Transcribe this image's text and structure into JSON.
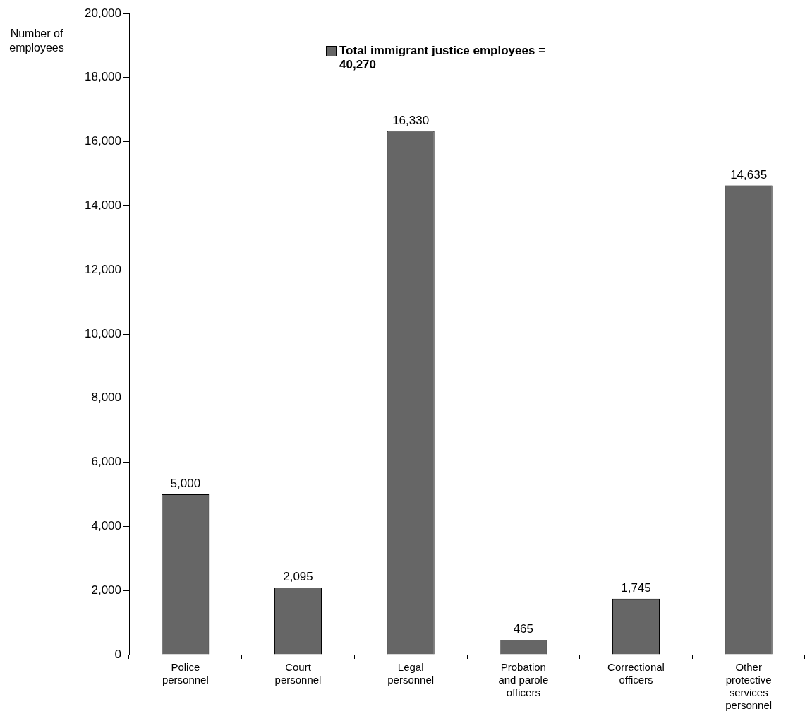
{
  "chart_data": {
    "type": "bar",
    "ylabel": "Number of employees",
    "categories": [
      "Police personnel",
      "Court personnel",
      "Legal personnel",
      "Probation and parole officers",
      "Correctional officers",
      "Other protective services personnel"
    ],
    "series": [
      {
        "name": "Total immigrant justice employees = 40,270",
        "color": "#666666",
        "values": [
          5000,
          2095,
          16330,
          465,
          1745,
          14635
        ],
        "value_labels": [
          "5,000",
          "2,095",
          "16,330",
          "465",
          "1,745",
          "14,635"
        ]
      }
    ],
    "ylim": [
      0,
      20000
    ],
    "yticks": [
      0,
      {
        "value": 2000,
        "label": "2,000"
      },
      {
        "value": 4000,
        "label": "4,000"
      },
      {
        "value": 6000,
        "label": "6,000"
      },
      {
        "value": 8000,
        "label": "8,000"
      },
      {
        "value": 10000,
        "label": "10,000"
      },
      {
        "value": 12000,
        "label": "12,000"
      },
      {
        "value": 14000,
        "label": "14,000"
      },
      {
        "value": 16000,
        "label": "16,000"
      },
      {
        "value": 18000,
        "label": "18,000"
      },
      {
        "value": 20000,
        "label": "20,000"
      }
    ],
    "grid": false,
    "legend": "top"
  }
}
